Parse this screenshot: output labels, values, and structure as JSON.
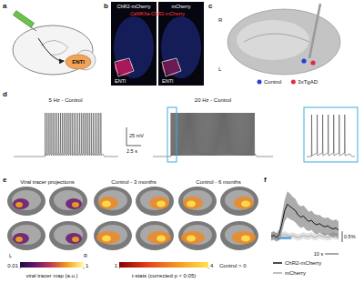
{
  "figure": {
    "a": {
      "letter": "a",
      "label": "ENTl"
    },
    "b": {
      "letter": "b",
      "title": "CaMKIIa-ChR2-mCherry",
      "columns": [
        "ChR2-mCherry",
        "mCherry"
      ],
      "region": "ENTl"
    },
    "c": {
      "letter": "c",
      "sides": [
        "R",
        "L"
      ],
      "legend": [
        {
          "name": "Control",
          "color": "#2a3ed6"
        },
        {
          "name": "3xTgAD",
          "color": "#e0284a"
        }
      ]
    },
    "d": {
      "letter": "d",
      "traces": [
        "5 Hz - Control",
        "20 Hz - Control"
      ],
      "scale_bars": [
        "25 mV",
        "2.5 s"
      ]
    },
    "e": {
      "letter": "e",
      "columns": [
        "Viral tracer projections",
        "Control - 3 months",
        "Control - 6 months"
      ],
      "sides": [
        "L",
        "R"
      ],
      "colorbars": [
        {
          "label": "viral tracer map (a.u.)",
          "range": [
            0.01,
            1
          ],
          "ticks": [
            0.01,
            1
          ]
        },
        {
          "title": "Control > 0",
          "label": "t-stats (corrected p < 0.05)",
          "range": [
            1,
            4
          ],
          "ticks": [
            1,
            4
          ]
        }
      ]
    },
    "f": {
      "letter": "f"
    }
  },
  "chart_data": {
    "type": "line",
    "x": [
      0,
      2,
      4,
      6,
      8,
      10,
      12,
      14,
      16,
      18,
      20,
      22,
      24,
      26,
      28,
      30,
      32,
      34,
      36,
      38,
      40,
      42,
      44,
      46,
      48,
      50
    ],
    "series": [
      {
        "name": "ChR2-mCherry",
        "color": "#111111",
        "values": [
          0,
          0.05,
          -0.05,
          0.1,
          0.6,
          1.2,
          1.5,
          1.4,
          1.3,
          1.2,
          1.0,
          0.9,
          0.95,
          0.8,
          0.7,
          0.75,
          0.6,
          0.55,
          0.6,
          0.5,
          0.45,
          0.5,
          0.4,
          0.35,
          0.4,
          0.3
        ],
        "error": [
          0.2,
          0.2,
          0.2,
          0.25,
          0.4,
          0.5,
          0.6,
          0.6,
          0.55,
          0.55,
          0.5,
          0.5,
          0.5,
          0.5,
          0.45,
          0.45,
          0.45,
          0.45,
          0.4,
          0.4,
          0.4,
          0.4,
          0.4,
          0.4,
          0.4,
          0.4
        ]
      },
      {
        "name": "mCherry",
        "color": "#aaaaaa",
        "values": [
          0,
          0.05,
          0,
          -0.05,
          0.05,
          0.1,
          0.05,
          0,
          0.05,
          0,
          -0.05,
          0,
          0.05,
          0,
          0,
          0.05,
          -0.05,
          0,
          0.05,
          0,
          0,
          -0.05,
          0,
          0.05,
          0,
          0
        ],
        "error": [
          0.15,
          0.15,
          0.15,
          0.15,
          0.15,
          0.15,
          0.15,
          0.15,
          0.15,
          0.15,
          0.15,
          0.15,
          0.15,
          0.15,
          0.15,
          0.15,
          0.15,
          0.15,
          0.15,
          0.15,
          0.15,
          0.15,
          0.15,
          0.15,
          0.15,
          0.15
        ]
      }
    ],
    "xlim": [
      0,
      50
    ],
    "ylim": [
      -0.6,
      2.2
    ],
    "stimulus": [
      5,
      15
    ],
    "scale_bars": [
      {
        "axis": "x",
        "value": 10,
        "label": "10 s"
      },
      {
        "axis": "y",
        "value": 0.5,
        "label": "0.5%"
      }
    ],
    "tick_labels": false,
    "legend": "bottom"
  }
}
